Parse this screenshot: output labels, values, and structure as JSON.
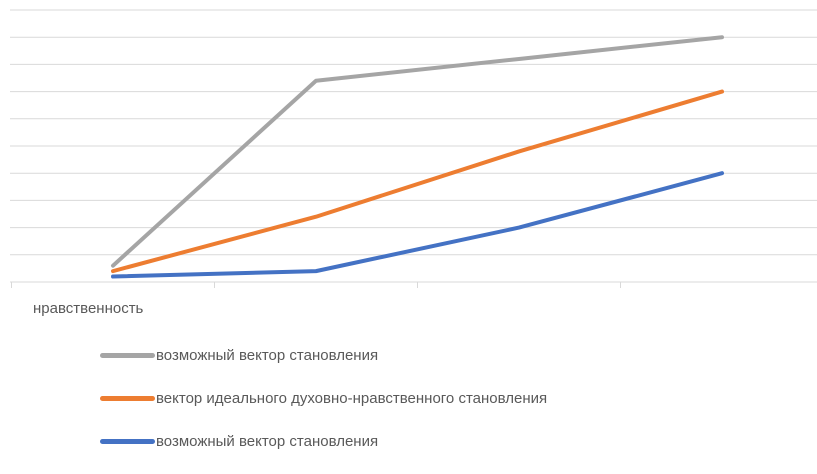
{
  "chart_data": {
    "type": "line",
    "title": "",
    "xlabel": "",
    "ylabel": "",
    "x": [
      1,
      2,
      3,
      4
    ],
    "category_labels": [
      "нравственность",
      "",
      "",
      ""
    ],
    "ylim": [
      0,
      10
    ],
    "grid": true,
    "legend_position": "bottom",
    "series": [
      {
        "name": "возможный вектор становления",
        "color": "#A5A5A5",
        "values": [
          0.6,
          7.4,
          8.2,
          9.0
        ]
      },
      {
        "name": "вектор идеального духовно-нравственного становления",
        "color": "#ED7D31",
        "values": [
          0.4,
          2.4,
          4.8,
          7.0
        ]
      },
      {
        "name": "возможный вектор становления",
        "color": "#4472C4",
        "values": [
          0.2,
          0.4,
          2.0,
          4.0
        ]
      }
    ]
  }
}
